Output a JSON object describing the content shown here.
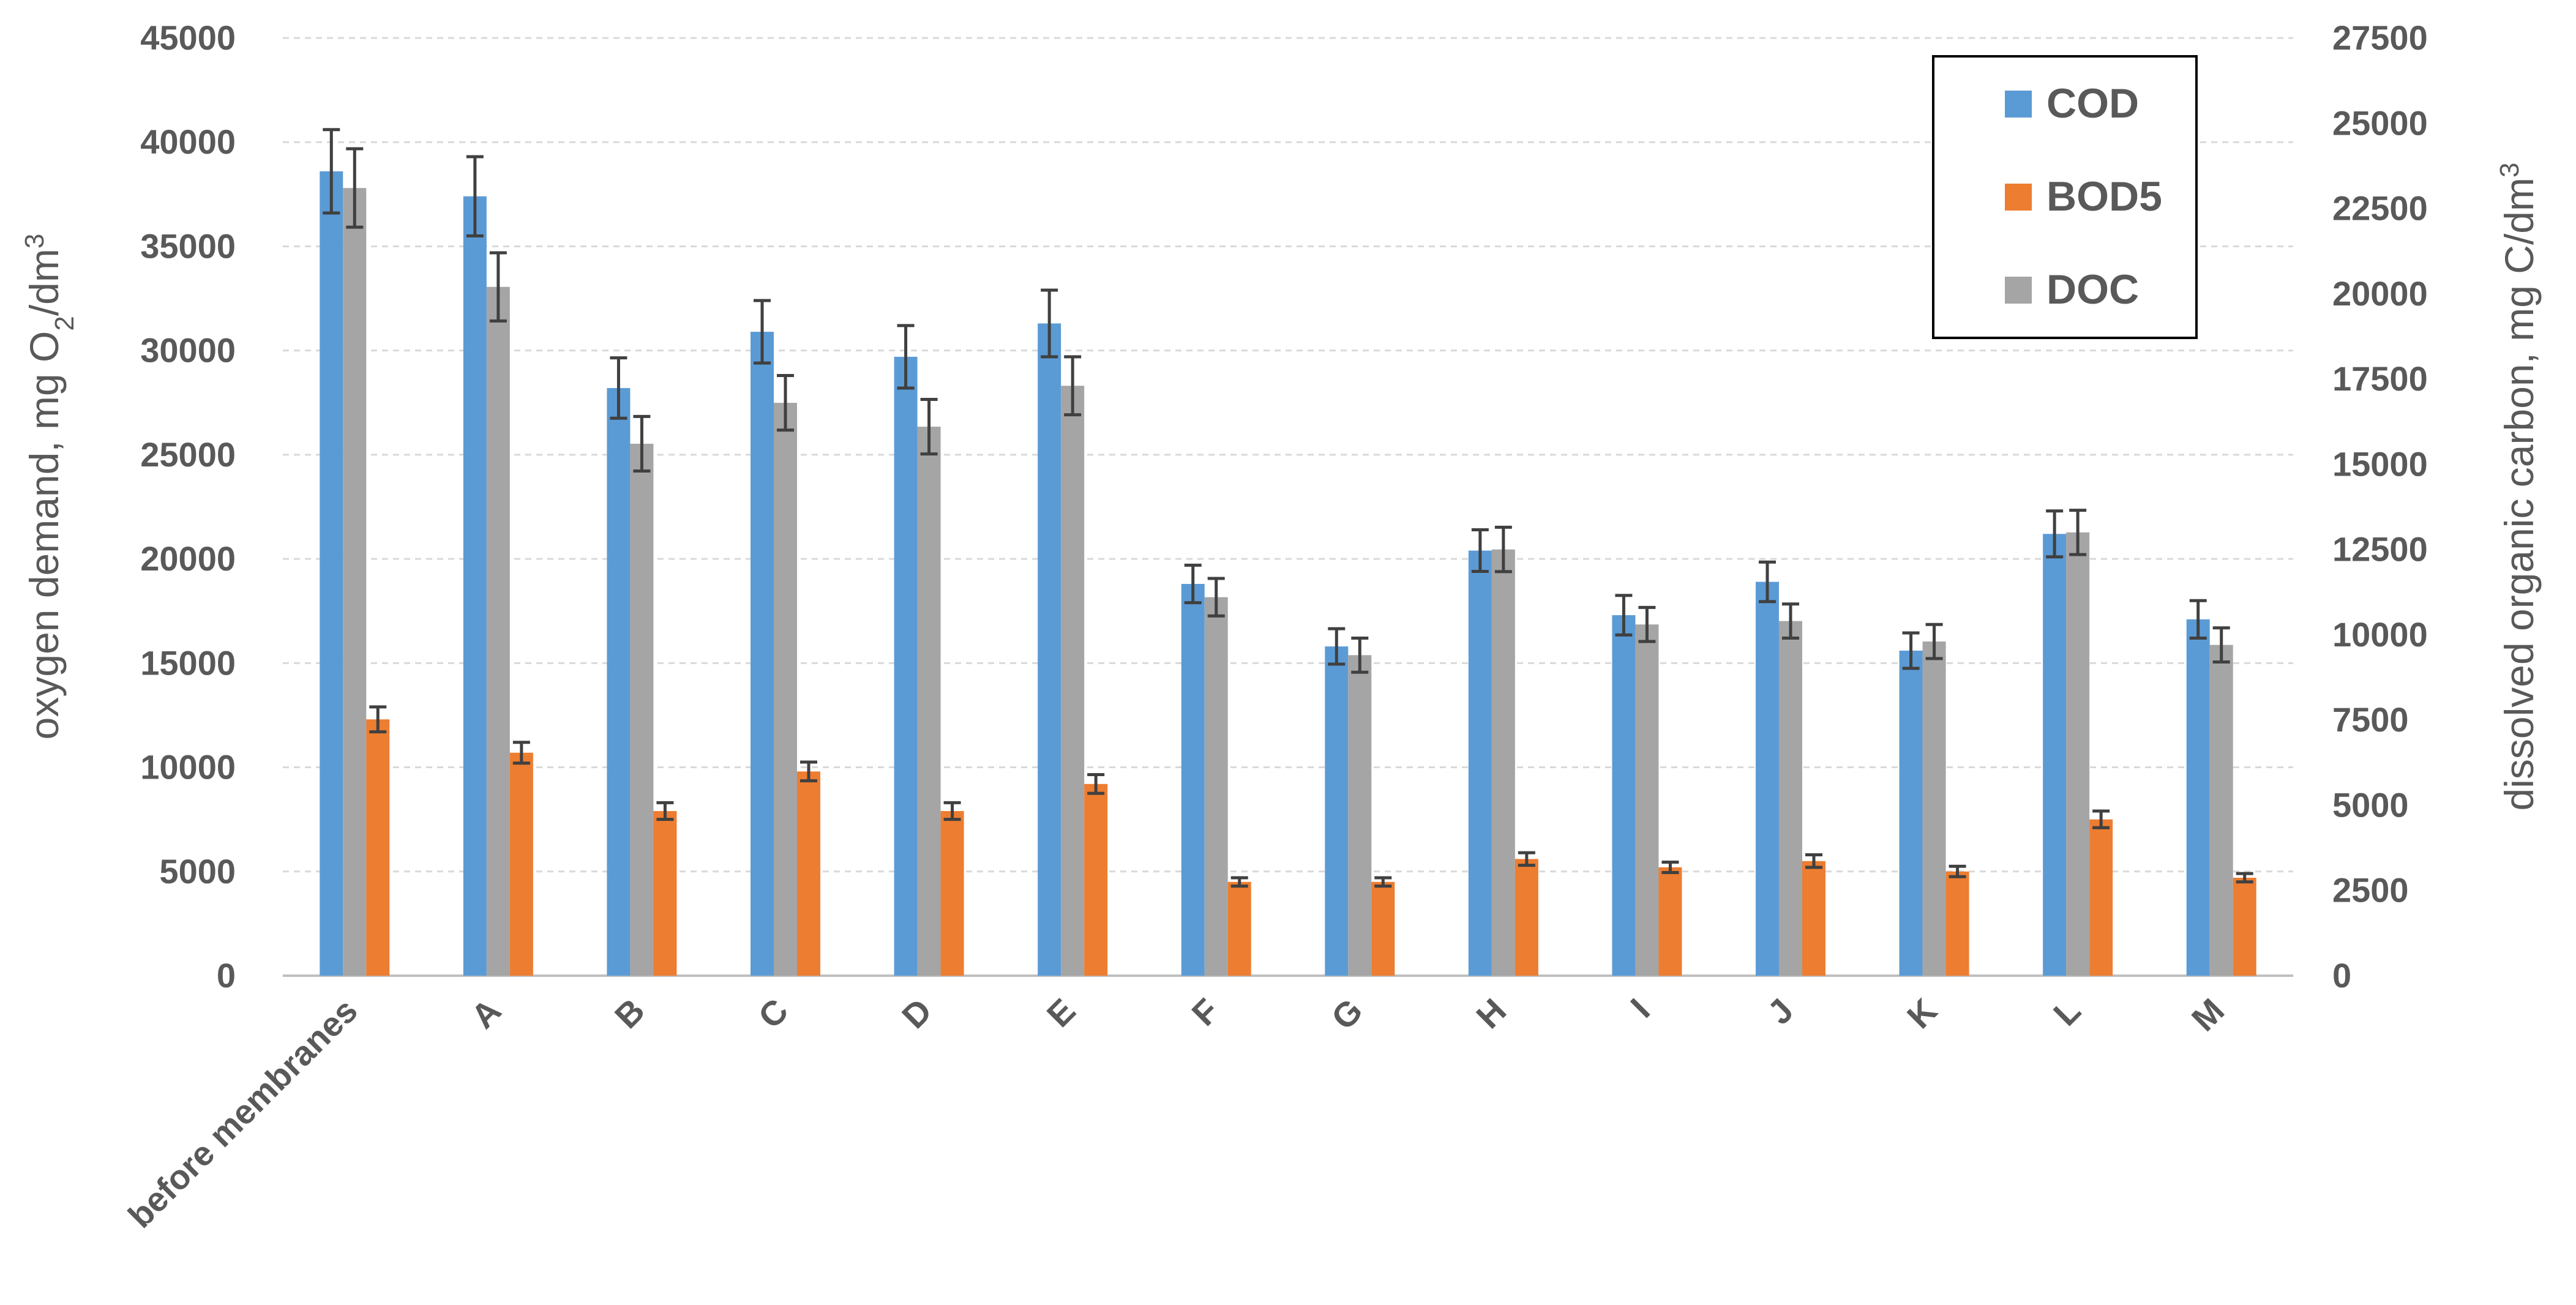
{
  "chart_data": {
    "type": "bar",
    "categories": [
      "before membranes",
      "A",
      "B",
      "C",
      "D",
      "E",
      "F",
      "G",
      "H",
      "I",
      "J",
      "K",
      "L",
      "M"
    ],
    "series": [
      {
        "name": "COD",
        "axis": "left",
        "color": "#5B9BD5",
        "values": [
          38600,
          37400,
          28200,
          30900,
          29700,
          31300,
          18800,
          15800,
          20400,
          17300,
          18900,
          15600,
          21200,
          17100
        ],
        "errors": [
          2000,
          1900,
          1450,
          1500,
          1500,
          1600,
          900,
          850,
          1000,
          950,
          950,
          850,
          1100,
          900
        ]
      },
      {
        "name": "BOD5",
        "axis": "left",
        "color": "#ED7D31",
        "values": [
          12300,
          10700,
          7900,
          9800,
          7900,
          9200,
          4500,
          4500,
          5600,
          5200,
          5500,
          5000,
          7500,
          4700
        ],
        "errors": [
          600,
          500,
          400,
          450,
          400,
          450,
          200,
          200,
          300,
          250,
          300,
          250,
          400,
          200
        ]
      },
      {
        "name": "DOC",
        "axis": "right",
        "color": "#A5A5A5",
        "values": [
          23100,
          20200,
          15600,
          16800,
          16100,
          17300,
          11100,
          9400,
          12500,
          10300,
          10400,
          9800,
          13000,
          9700
        ],
        "errors": [
          1150,
          1000,
          800,
          800,
          800,
          850,
          550,
          500,
          650,
          500,
          500,
          500,
          650,
          500
        ]
      }
    ],
    "ylabel": "oxygen demand, mg O2/dm3",
    "ylabel_parts": [
      "oxygen demand, mg O",
      "2",
      "/dm",
      "3"
    ],
    "y2label": "dissolved organic carbon, mg C/dm3",
    "y2label_parts": [
      "dissolved organic carbon, mg C/dm",
      "3"
    ],
    "ylim": [
      0,
      45000
    ],
    "y2lim": [
      0,
      27500
    ],
    "yticks": [
      "0",
      "5000",
      "10000",
      "15000",
      "20000",
      "25000",
      "30000",
      "35000",
      "40000",
      "45000"
    ],
    "y2ticks": [
      "0",
      "2500",
      "5000",
      "7500",
      "10000",
      "12500",
      "15000",
      "17500",
      "20000",
      "22500",
      "25000",
      "27500"
    ],
    "grid": true,
    "legend_position": "top-right",
    "error_bars": true
  }
}
